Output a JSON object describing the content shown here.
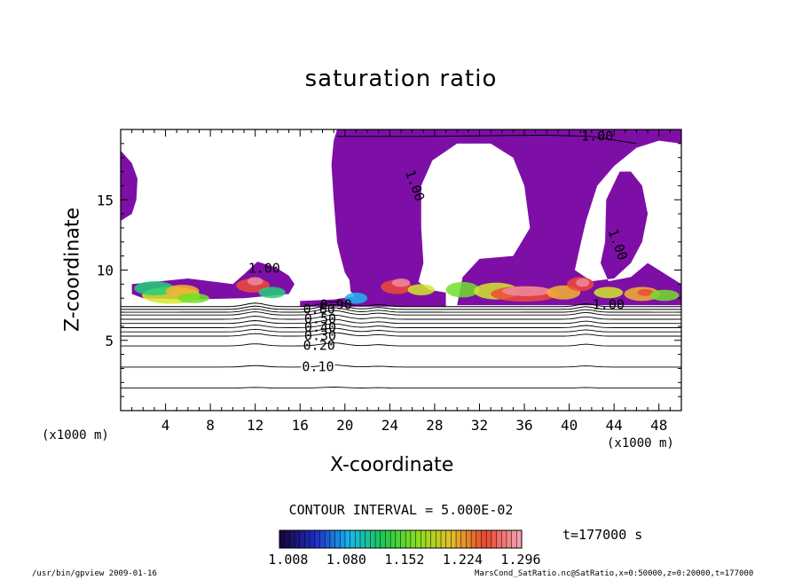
{
  "chart_data": {
    "type": "heatmap",
    "title": "saturation ratio",
    "xlabel": "X-coordinate",
    "ylabel": "Z-coordinate",
    "x_unit": "(x1000 m)",
    "z_unit": "(x1000 m)",
    "xlim": [
      0,
      50
    ],
    "ylim": [
      0,
      20
    ],
    "x_ticks": [
      "4",
      "8",
      "12",
      "16",
      "20",
      "24",
      "28",
      "32",
      "36",
      "40",
      "44",
      "48"
    ],
    "y_ticks": [
      "5",
      "10",
      "15"
    ],
    "contour_interval_label": "CONTOUR INTERVAL = 5.000E-02",
    "time_label": "t=177000 s",
    "colorbar_ticks": [
      "1.008",
      "1.080",
      "1.152",
      "1.224",
      "1.296"
    ],
    "colorbar_range": [
      1.0,
      1.3
    ],
    "saturated_color": "#7d0fa6",
    "contour_labels": [
      {
        "text": "1.00",
        "x": 42.5,
        "y": 19.5
      },
      {
        "text": "1.00",
        "x": 26.2,
        "y": 16.0
      },
      {
        "text": "1.00",
        "x": 44.3,
        "y": 11.8
      },
      {
        "text": "1.00",
        "x": 12.8,
        "y": 10.1
      },
      {
        "text": "1.00",
        "x": 43.5,
        "y": 7.5
      },
      {
        "text": "0.10",
        "x": 17.6,
        "y": 3.1
      },
      {
        "text": "0.20",
        "x": 17.7,
        "y": 4.6
      },
      {
        "text": "0.30",
        "x": 17.8,
        "y": 5.3
      },
      {
        "text": "0.40",
        "x": 17.8,
        "y": 5.9
      },
      {
        "text": "0.50",
        "x": 17.8,
        "y": 6.5
      },
      {
        "text": "0.60",
        "x": 17.7,
        "y": 7.2
      },
      {
        "text": "0.90",
        "x": 19.2,
        "y": 7.5
      }
    ],
    "contour_levels_lower": [
      1.6,
      3.1,
      4.6,
      5.3,
      5.6,
      5.9,
      6.2,
      6.5,
      6.8,
      7.0,
      7.2,
      7.4
    ]
  },
  "footer": {
    "left": "/usr/bin/gpview   2009-01-16",
    "right": "MarsCond_SatRatio.nc@SatRatio,x=0:50000,z=0:20000,t=177000"
  }
}
